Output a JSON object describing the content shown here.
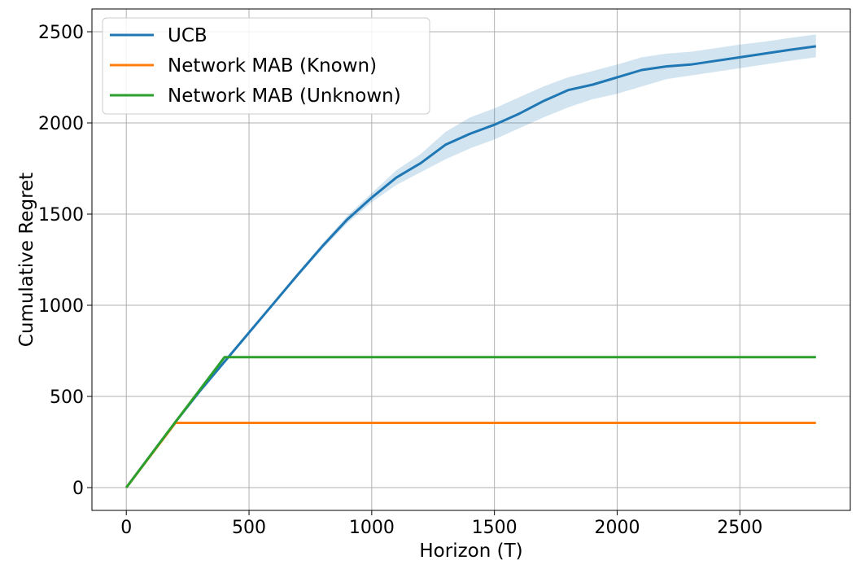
{
  "chart_data": {
    "type": "line",
    "title": "",
    "xlabel": "Horizon (T)",
    "ylabel": "Cumulative Regret",
    "xlim": [
      -140,
      2950
    ],
    "ylim": [
      -125,
      2625
    ],
    "xticks": [
      0,
      500,
      1000,
      1500,
      2000,
      2500
    ],
    "yticks": [
      0,
      500,
      1000,
      1500,
      2000,
      2500
    ],
    "grid": true,
    "legend_position": "top-left",
    "series": [
      {
        "name": "UCB",
        "color": "#1f77b4",
        "x": [
          0,
          100,
          200,
          300,
          400,
          500,
          600,
          700,
          800,
          900,
          1000,
          1100,
          1200,
          1300,
          1400,
          1500,
          1600,
          1700,
          1800,
          1900,
          2000,
          2100,
          2200,
          2300,
          2400,
          2500,
          2600,
          2700,
          2810
        ],
        "y": [
          0,
          180,
          360,
          530,
          690,
          850,
          1010,
          1170,
          1325,
          1470,
          1590,
          1700,
          1780,
          1880,
          1940,
          1990,
          2050,
          2120,
          2180,
          2210,
          2250,
          2290,
          2310,
          2320,
          2340,
          2360,
          2380,
          2400,
          2420
        ],
        "band_lower": [
          0,
          180,
          360,
          530,
          690,
          845,
          1000,
          1160,
          1310,
          1450,
          1565,
          1660,
          1730,
          1800,
          1860,
          1910,
          1970,
          2030,
          2085,
          2130,
          2160,
          2200,
          2240,
          2260,
          2280,
          2300,
          2320,
          2340,
          2360
        ],
        "band_upper": [
          0,
          180,
          360,
          530,
          690,
          855,
          1020,
          1180,
          1340,
          1490,
          1615,
          1740,
          1830,
          1950,
          2030,
          2080,
          2140,
          2200,
          2250,
          2285,
          2320,
          2360,
          2380,
          2390,
          2410,
          2430,
          2445,
          2465,
          2485
        ]
      },
      {
        "name": "Network MAB (Known)",
        "color": "#ff7f0e",
        "x": [
          0,
          200,
          2810
        ],
        "y": [
          0,
          355,
          355
        ]
      },
      {
        "name": "Network MAB (Unknown)",
        "color": "#2ca02c",
        "x": [
          0,
          200,
          400,
          2810
        ],
        "y": [
          0,
          360,
          715,
          715
        ]
      }
    ]
  }
}
